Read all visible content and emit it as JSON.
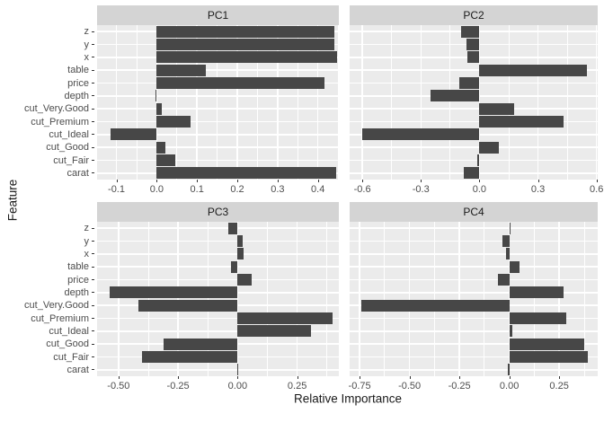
{
  "chart_data": {
    "type": "bar",
    "orientation": "horizontal",
    "faceted": true,
    "title": "",
    "xlabel": "Relative Importance",
    "ylabel": "Feature",
    "legend": false,
    "grid": true,
    "categories_top_to_bottom": [
      "z",
      "y",
      "x",
      "table",
      "price",
      "depth",
      "cut_Very.Good",
      "cut_Premium",
      "cut_Ideal",
      "cut_Good",
      "cut_Fair",
      "carat"
    ],
    "panels": [
      {
        "title": "PC1",
        "xlim": [
          -0.148,
          0.452
        ],
        "x_ticks": [
          -0.1,
          0.0,
          0.1,
          0.2,
          0.3,
          0.4
        ],
        "x_tick_labels": [
          "-0.1",
          "0.0",
          "0.1",
          "0.2",
          "0.3",
          "0.4"
        ],
        "values": [
          0.44,
          0.44,
          0.447,
          0.123,
          0.417,
          -0.002,
          0.012,
          0.083,
          -0.115,
          0.021,
          0.046,
          0.446
        ]
      },
      {
        "title": "PC2",
        "xlim": [
          -0.665,
          0.606
        ],
        "x_ticks": [
          -0.6,
          -0.3,
          0.0,
          0.3,
          0.6
        ],
        "x_tick_labels": [
          "-0.6",
          "-0.3",
          "0.0",
          "0.3",
          "0.6"
        ],
        "values": [
          -0.095,
          -0.065,
          -0.06,
          0.553,
          -0.105,
          -0.25,
          0.177,
          0.43,
          -0.6,
          0.098,
          -0.011,
          -0.08
        ]
      },
      {
        "title": "PC3",
        "xlim": [
          -0.59,
          0.425
        ],
        "x_ticks": [
          -0.5,
          -0.25,
          0.0,
          0.25
        ],
        "x_tick_labels": [
          "-0.50",
          "-0.25",
          "0.00",
          "0.25"
        ],
        "values": [
          -0.039,
          0.021,
          0.026,
          -0.026,
          0.06,
          -0.536,
          -0.416,
          0.4,
          0.307,
          -0.31,
          -0.4,
          0.004
        ]
      },
      {
        "title": "PC4",
        "xlim": [
          -0.8,
          0.443
        ],
        "x_ticks": [
          -0.75,
          -0.5,
          -0.25,
          0.0,
          0.25
        ],
        "x_tick_labels": [
          "-0.75",
          "-0.50",
          "-0.25",
          "0.00",
          "0.25"
        ],
        "values": [
          0.004,
          -0.036,
          -0.017,
          0.053,
          -0.056,
          0.27,
          -0.74,
          0.285,
          0.015,
          0.376,
          0.393,
          -0.008
        ]
      }
    ],
    "colors": {
      "bar": "#474747",
      "panel_bg": "#EBEBEB",
      "strip_bg": "#D4D4D4",
      "gridline": "#FFFFFF",
      "axis_text": "#4d4d4d",
      "title_text": "#1a1a1a",
      "background": "#FFFFFF"
    }
  }
}
